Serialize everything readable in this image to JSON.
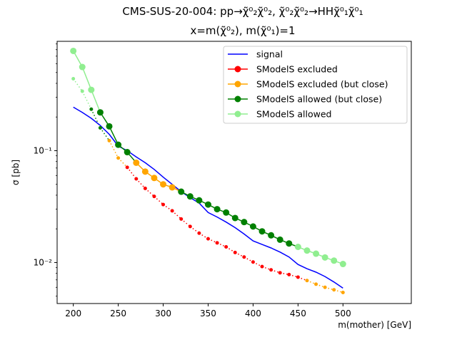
{
  "chart_data": {
    "type": "line",
    "title": "CMS-SUS-20-004: pp→χ̃⁰₂χ̃⁰₂, χ̃⁰₂χ̃⁰₂→HHχ̃⁰₁χ̃⁰₁",
    "subtitle": "x=m(χ̃⁰₂), m(χ̃⁰₁)=1",
    "xlabel": "m(mother) [GeV]",
    "ylabel": "σ [pb]",
    "xlim": [
      182,
      576
    ],
    "ylim": [
      0.0043,
      0.95
    ],
    "yscale": "log",
    "grid": false,
    "legend_position": "top-right",
    "x_ticks": [
      200,
      250,
      300,
      350,
      400,
      450,
      500
    ],
    "x_tick_labels": [
      "200",
      "250",
      "300",
      "350",
      "400",
      "450",
      "500"
    ],
    "y_ticks": [
      0.1,
      0.01
    ],
    "y_tick_labels": [
      "10⁻¹",
      "10⁻²"
    ],
    "signal": {
      "name": "signal",
      "color": "#0000ff",
      "x": [
        200,
        210,
        220,
        230,
        240,
        250,
        260,
        270,
        280,
        290,
        300,
        310,
        320,
        330,
        340,
        350,
        360,
        370,
        380,
        390,
        400,
        410,
        420,
        430,
        440,
        450,
        460,
        470,
        480,
        490,
        500
      ],
      "y": [
        0.245,
        0.22,
        0.195,
        0.168,
        0.14,
        0.11,
        0.1,
        0.088,
        0.078,
        0.068,
        0.058,
        0.05,
        0.043,
        0.038,
        0.034,
        0.028,
        0.0255,
        0.023,
        0.0205,
        0.018,
        0.0156,
        0.0145,
        0.0135,
        0.0124,
        0.0112,
        0.0096,
        0.0088,
        0.0082,
        0.0075,
        0.0067,
        0.0059
      ]
    },
    "upper_curve": {
      "x": [
        200,
        210,
        220,
        230,
        240,
        250,
        260,
        270,
        280,
        290,
        300,
        310,
        320,
        330,
        340,
        350,
        360,
        370,
        380,
        390,
        400,
        410,
        420,
        430,
        440,
        450,
        460,
        470,
        480,
        490,
        500
      ],
      "y": [
        0.78,
        0.56,
        0.35,
        0.22,
        0.165,
        0.113,
        0.097,
        0.078,
        0.065,
        0.057,
        0.05,
        0.047,
        0.043,
        0.039,
        0.036,
        0.033,
        0.03,
        0.028,
        0.025,
        0.023,
        0.021,
        0.019,
        0.0175,
        0.016,
        0.0148,
        0.0138,
        0.0128,
        0.012,
        0.0111,
        0.0104,
        0.0097
      ],
      "status": [
        "allowed",
        "allowed",
        "allowed",
        "allowed_close",
        "allowed_close",
        "allowed_close",
        "allowed_close",
        "excluded_close",
        "excluded_close",
        "excluded_close",
        "excluded_close",
        "excluded_close",
        "allowed_close",
        "allowed_close",
        "allowed_close",
        "allowed_close",
        "allowed_close",
        "allowed_close",
        "allowed_close",
        "allowed_close",
        "allowed_close",
        "allowed_close",
        "allowed_close",
        "allowed_close",
        "allowed_close",
        "allowed",
        "allowed",
        "allowed",
        "allowed",
        "allowed",
        "allowed"
      ]
    },
    "lower_curve": {
      "x": [
        200,
        210,
        220,
        230,
        240,
        250,
        260,
        270,
        280,
        290,
        300,
        310,
        320,
        330,
        340,
        350,
        360,
        370,
        380,
        390,
        400,
        410,
        420,
        430,
        440,
        450,
        460,
        470,
        480,
        490,
        500
      ],
      "y": [
        0.44,
        0.34,
        0.235,
        0.16,
        0.123,
        0.086,
        0.071,
        0.056,
        0.046,
        0.039,
        0.033,
        0.029,
        0.0245,
        0.021,
        0.0183,
        0.0163,
        0.015,
        0.0138,
        0.0123,
        0.0112,
        0.0101,
        0.0092,
        0.0086,
        0.0081,
        0.0078,
        0.0074,
        0.0069,
        0.0064,
        0.006,
        0.0057,
        0.0054
      ],
      "status": [
        "allowed",
        "allowed",
        "allowed_close",
        "allowed_close",
        "excluded_close",
        "excluded_close",
        "excluded",
        "excluded",
        "excluded",
        "excluded",
        "excluded",
        "excluded",
        "excluded",
        "excluded",
        "excluded",
        "excluded",
        "excluded",
        "excluded",
        "excluded",
        "excluded",
        "excluded",
        "excluded",
        "excluded",
        "excluded",
        "excluded",
        "excluded",
        "excluded_close",
        "excluded_close",
        "excluded_close",
        "excluded_close",
        "excluded_close"
      ]
    },
    "legend": [
      {
        "key": "signal",
        "label": "signal",
        "color": "#0000ff",
        "marker": false
      },
      {
        "key": "excluded",
        "label": "SModelS excluded",
        "color": "#ff0000",
        "marker": true
      },
      {
        "key": "excluded_close",
        "label": "SModelS excluded (but close)",
        "color": "#ffa500",
        "marker": true
      },
      {
        "key": "allowed_close",
        "label": "SModelS allowed (but close)",
        "color": "#008000",
        "marker": true
      },
      {
        "key": "allowed",
        "label": "SModelS allowed",
        "color": "#90ee90",
        "marker": true
      }
    ],
    "status_colors": {
      "excluded": "#ff0000",
      "excluded_close": "#ffa500",
      "allowed_close": "#008000",
      "allowed": "#90ee90"
    }
  }
}
